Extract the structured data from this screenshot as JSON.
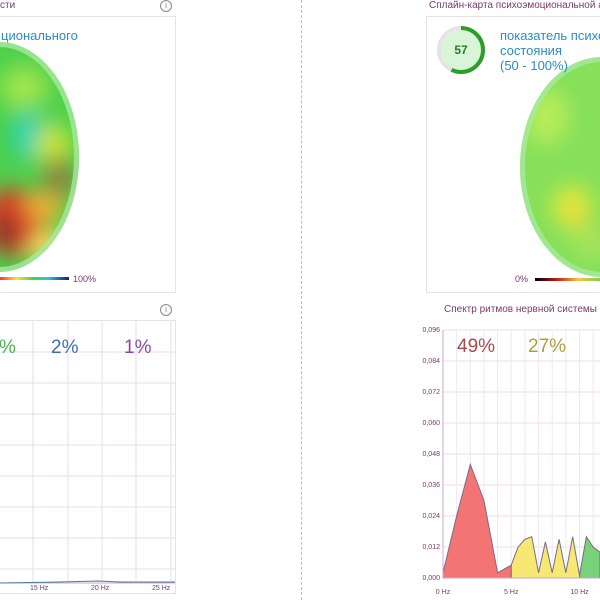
{
  "left": {
    "title_fragment": "сти",
    "heatmap_label": "ционального",
    "scale_max": "100%",
    "spectrum": {
      "pcts": [
        {
          "text": "%",
          "color": "#4caf50"
        },
        {
          "text": "2%",
          "color": "#3b6fa8"
        },
        {
          "text": "1%",
          "color": "#8e44ad"
        }
      ],
      "x_ticks": [
        "15 Hz",
        "20 Hz",
        "25 Hz"
      ]
    }
  },
  "right": {
    "map_title": "Сплайн-карта психоэмоциональной ак",
    "gauge_value": "57",
    "gauge_fraction": 0.57,
    "label_lines": [
      "показатель психо",
      "состояния",
      "(50 - 100%)"
    ],
    "scale_min": "0%",
    "spectrum_title": "Спектр ритмов нервной системы",
    "pcts": [
      {
        "text": "49%",
        "color": "#a84a4a"
      },
      {
        "text": "27%",
        "color": "#a8a040"
      }
    ]
  },
  "chart_data": {
    "type": "area",
    "title": "Спектр ритмов нервной системы",
    "xlabel": "",
    "ylabel": "",
    "x_ticks": [
      "0 Hz",
      "5 Hz",
      "10 Hz"
    ],
    "y_ticks": [
      "0,000",
      "0,012",
      "0,024",
      "0,036",
      "0,048",
      "0,060",
      "0,072",
      "0,084",
      "0,096"
    ],
    "xlim": [
      0,
      11.5
    ],
    "ylim": [
      0,
      0.096
    ],
    "series": [
      {
        "color": "#f26d6d",
        "x": [
          0,
          1,
          2,
          3,
          4,
          5
        ],
        "y": [
          0.002,
          0.024,
          0.044,
          0.03,
          0.002,
          0.005
        ]
      },
      {
        "color": "#f5e76a",
        "x": [
          5,
          5.5,
          6,
          6.5,
          7,
          7.5,
          8,
          8.5,
          9,
          9.5,
          10
        ],
        "y": [
          0.005,
          0.012,
          0.015,
          0.016,
          0.002,
          0.014,
          0.002,
          0.015,
          0.002,
          0.016,
          0.001
        ]
      },
      {
        "color": "#72d072",
        "x": [
          10,
          10.5,
          11,
          11.5
        ],
        "y": [
          0.001,
          0.016,
          0.012,
          0.01
        ]
      }
    ],
    "grid": true
  }
}
